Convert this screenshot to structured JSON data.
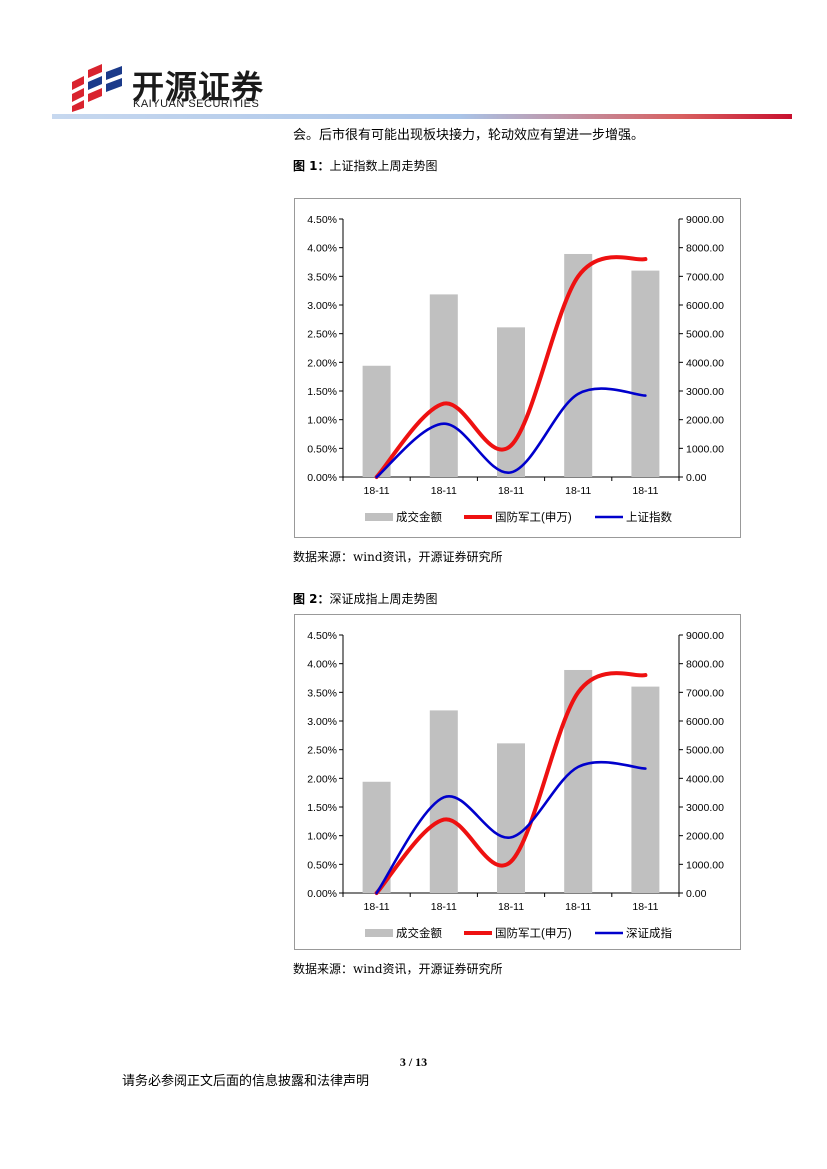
{
  "header": {
    "logo_cn": "开源证券",
    "logo_en": "KAIYUAN SECURITIES",
    "colors": {
      "red": "#d9232e",
      "blue": "#1b3a8a",
      "rule_red": "#c8102e",
      "rule_blue": "#a9c4e8"
    }
  },
  "body_text": "会。后市很有可能出现板块接力，轮动效应有望进一步增强。",
  "figures": [
    {
      "number": "图 1：",
      "title": "上证指数上周走势图",
      "source": "数据来源：wind资讯，开源证券研究所"
    },
    {
      "number": "图 2：",
      "title": "深证成指上周走势图",
      "source": "数据来源：wind资讯，开源证券研究所"
    }
  ],
  "footer": {
    "page": "3 / 13",
    "disclaimer": "请务必参阅正文后面的信息披露和法律声明"
  },
  "chart_data": [
    {
      "type": "bar",
      "categories": [
        "18-11",
        "18-11",
        "18-11",
        "18-11",
        "18-11"
      ],
      "y_left": {
        "min": 0,
        "max": 4.5,
        "ticks": [
          "0.00%",
          "0.50%",
          "1.00%",
          "1.50%",
          "2.00%",
          "2.50%",
          "3.00%",
          "3.50%",
          "4.00%",
          "4.50%"
        ]
      },
      "y_right": {
        "min": 0,
        "max": 9000,
        "ticks": [
          "0.00",
          "1000.00",
          "2000.00",
          "3000.00",
          "4000.00",
          "5000.00",
          "6000.00",
          "7000.00",
          "8000.00",
          "9000.00"
        ]
      },
      "series": [
        {
          "name": "成交金额",
          "kind": "bar",
          "axis": "right",
          "color": "#c0c0c0",
          "values": [
            3880,
            6370,
            5220,
            7780,
            7200
          ]
        },
        {
          "name": "国防军工(申万)",
          "kind": "line",
          "axis": "left",
          "color": "#ee1111",
          "values": [
            0.0,
            1.28,
            0.55,
            3.5,
            3.8
          ]
        },
        {
          "name": "上证指数",
          "kind": "line",
          "axis": "left",
          "color": "#0000cc",
          "values": [
            0.0,
            0.93,
            0.08,
            1.45,
            1.42
          ]
        }
      ],
      "legend": "bottom",
      "grid": false
    },
    {
      "type": "bar",
      "categories": [
        "18-11",
        "18-11",
        "18-11",
        "18-11",
        "18-11"
      ],
      "y_left": {
        "min": 0,
        "max": 4.5,
        "ticks": [
          "0.00%",
          "0.50%",
          "1.00%",
          "1.50%",
          "2.00%",
          "2.50%",
          "3.00%",
          "3.50%",
          "4.00%",
          "4.50%"
        ]
      },
      "y_right": {
        "min": 0,
        "max": 9000,
        "ticks": [
          "0.00",
          "1000.00",
          "2000.00",
          "3000.00",
          "4000.00",
          "5000.00",
          "6000.00",
          "7000.00",
          "8000.00",
          "9000.00"
        ]
      },
      "series": [
        {
          "name": "成交金额",
          "kind": "bar",
          "axis": "right",
          "color": "#c0c0c0",
          "values": [
            3880,
            6370,
            5220,
            7780,
            7200
          ]
        },
        {
          "name": "国防军工(申万)",
          "kind": "line",
          "axis": "left",
          "color": "#ee1111",
          "values": [
            0.0,
            1.28,
            0.55,
            3.5,
            3.8
          ]
        },
        {
          "name": "深证成指",
          "kind": "line",
          "axis": "left",
          "color": "#0000cc",
          "values": [
            0.0,
            1.67,
            0.97,
            2.2,
            2.17
          ]
        }
      ],
      "legend": "bottom",
      "grid": false
    }
  ]
}
